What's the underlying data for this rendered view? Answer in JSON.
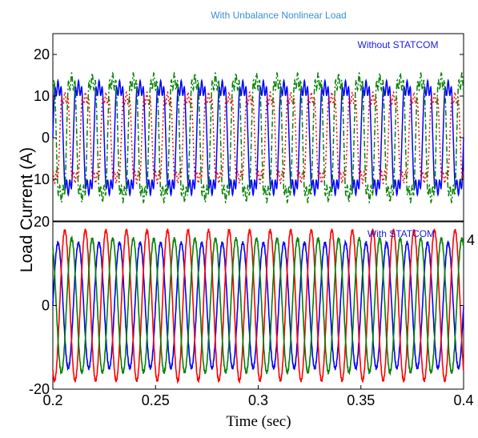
{
  "chart_data": [
    {
      "type": "line",
      "title": "With Unbalance Nonlinear Load",
      "annotation": "Without STATCOM",
      "xlim": [
        0.2,
        0.4
      ],
      "ylim": [
        -20,
        25
      ],
      "yticks": [
        "20",
        "10",
        "0",
        "-10"
      ],
      "ytick_values": [
        20,
        10,
        0,
        -10
      ],
      "waveform": "distorted",
      "frequency_hz": 100,
      "series": [
        {
          "amplitude": 15,
          "phase_deg": 0,
          "color": "#0000ff",
          "style": "solid"
        },
        {
          "amplitude": 12,
          "phase_deg": -120,
          "color": "#ff0000",
          "style": "dotted"
        },
        {
          "amplitude": 17,
          "phase_deg": 120,
          "color": "#008000",
          "style": "dashdot"
        }
      ]
    },
    {
      "type": "line",
      "annotation": "With STATCOM",
      "xlim": [
        0.2,
        0.4
      ],
      "ylim": [
        -20,
        20
      ],
      "yticks": [
        "20",
        "0",
        "-20"
      ],
      "ytick_values": [
        20,
        0,
        -20
      ],
      "xticks": [
        "0.2",
        "0.25",
        "0.3",
        "0.35",
        "0.4"
      ],
      "xtick_values": [
        0.2,
        0.25,
        0.3,
        0.35,
        0.4
      ],
      "xlabel": "Time (sec)",
      "waveform": "sinusoidal",
      "frequency_hz": 100,
      "series": [
        {
          "amplitude": 15,
          "phase_deg": 0,
          "color": "#0000ff",
          "style": "solid"
        },
        {
          "amplitude": 18,
          "phase_deg": -120,
          "color": "#ff0000",
          "style": "solid"
        },
        {
          "amplitude": 16,
          "phase_deg": 120,
          "color": "#008000",
          "style": "solid"
        }
      ]
    }
  ],
  "shared": {
    "ylabel": "Load Current (A)",
    "stray_label": "4"
  }
}
